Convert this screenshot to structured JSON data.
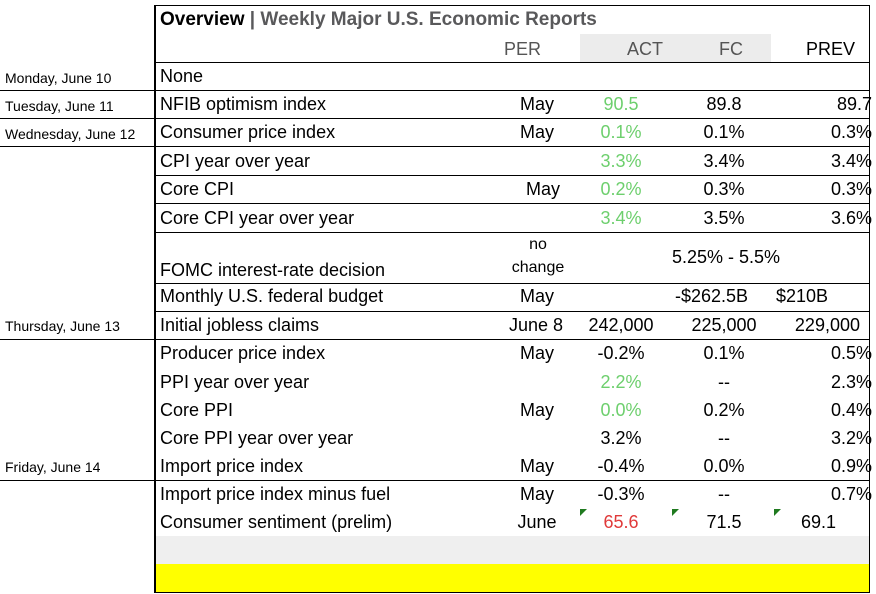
{
  "title": {
    "main": "Overview",
    "separator": "|",
    "subtitle": "Weekly Major U.S. Economic Reports"
  },
  "headers": {
    "per": "PER",
    "act": "ACT",
    "fc": "FC",
    "prev": "PREV"
  },
  "days": [
    "Monday, June 10",
    "Tuesday, June 11",
    "Wednesday, June 12",
    "Thursday, June 13",
    "Friday, June 14"
  ],
  "rows": [
    {
      "name": "None",
      "per": "",
      "act": "",
      "fc": "",
      "prev": ""
    },
    {
      "name": "NFIB optimism index",
      "per": "May",
      "act": "90.5",
      "fc": "89.8",
      "prev": "89.7"
    },
    {
      "name": "Consumer price index",
      "per": "May",
      "act": "0.1%",
      "fc": "0.1%",
      "prev": "0.3%"
    },
    {
      "name": "CPI year over year",
      "per": "",
      "act": "3.3%",
      "fc": "3.4%",
      "prev": "3.4%"
    },
    {
      "name": "Core CPI",
      "per": "May",
      "act": "0.2%",
      "fc": "0.3%",
      "prev": "0.3%"
    },
    {
      "name": "Core CPI year over year",
      "per": "",
      "act": "3.4%",
      "fc": "3.5%",
      "prev": "3.6%"
    },
    {
      "name": "FOMC interest-rate decision",
      "per_line1": "no",
      "per_line2": "change",
      "span_value": "5.25% - 5.5%"
    },
    {
      "name": "Monthly U.S. federal budget",
      "per": "May",
      "act": "",
      "fc": "-$262.5B",
      "prev": "$210B"
    },
    {
      "name": "Initial jobless claims",
      "per": "June 8",
      "act": "242,000",
      "fc": "225,000",
      "prev": "229,000"
    },
    {
      "name": "Producer price index",
      "per": "May",
      "act": "-0.2%",
      "fc": "0.1%",
      "prev": "0.5%"
    },
    {
      "name": "PPI year over year",
      "per": "",
      "act": "2.2%",
      "fc": "--",
      "prev": "2.3%"
    },
    {
      "name": "Core PPI",
      "per": "May",
      "act": "0.0%",
      "fc": "0.2%",
      "prev": "0.4%"
    },
    {
      "name": "Core PPI year over year",
      "per": "",
      "act": "3.2%",
      "fc": "--",
      "prev": "3.2%"
    },
    {
      "name": "Import price index",
      "per": "May",
      "act": "-0.4%",
      "fc": "0.0%",
      "prev": "0.9%"
    },
    {
      "name": "Import price index minus fuel",
      "per": "May",
      "act": "-0.3%",
      "fc": "--",
      "prev": "0.7%"
    },
    {
      "name": "Consumer sentiment (prelim)",
      "per": "June",
      "act": "65.6",
      "fc": "71.5",
      "prev": "69.1"
    }
  ],
  "colors": {
    "better": "#6dcf6d",
    "worse": "#e03a3a",
    "highlight": "#ffff00",
    "header_shade": "#ececec",
    "comment_flag": "#1f7a1f"
  }
}
